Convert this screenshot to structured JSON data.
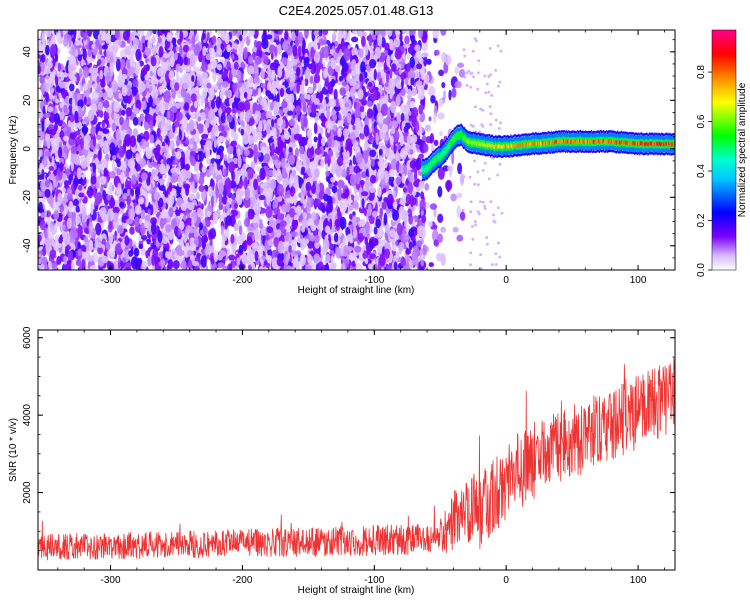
{
  "title": "C2E4.2025.057.01.48.G13",
  "chart_data": [
    {
      "type": "heatmap",
      "xlabel": "Height of straight line (km)",
      "ylabel": "Frequency (Hz)",
      "xlim": [
        -355,
        128
      ],
      "ylim": [
        -50,
        49
      ],
      "xticks": [
        -300,
        -200,
        -100,
        0,
        100
      ],
      "yticks": [
        -40,
        -20,
        0,
        20,
        40
      ],
      "colorbar": {
        "label": "Normalized spectral amplitude",
        "range": [
          0,
          0.97
        ],
        "ticks": [
          "0.0",
          "0.2",
          "0.4",
          "0.6",
          "0.8"
        ],
        "colors": [
          "#ffffff",
          "#7b00ff",
          "#0000ff",
          "#00ffff",
          "#00ff00",
          "#ffff00",
          "#ff0000",
          "#ff00aa"
        ]
      },
      "noise_region": {
        "x_range": [
          -355,
          -33
        ],
        "freq_range": [
          -50,
          49
        ],
        "amplitude_range": [
          0.0,
          0.2
        ]
      },
      "signal_track": {
        "x": [
          -64,
          -60,
          -55,
          -50,
          -45,
          -40,
          -35,
          -30,
          -20,
          -10,
          0,
          20,
          40,
          60,
          80,
          100,
          128
        ],
        "freq": [
          -9,
          -8,
          -5,
          -3,
          0,
          4,
          6,
          3,
          2,
          1,
          1,
          2,
          3,
          3,
          3,
          2,
          2
        ],
        "amplitude": [
          0.45,
          0.5,
          0.55,
          0.5,
          0.5,
          0.6,
          0.55,
          0.65,
          0.7,
          0.75,
          0.8,
          0.82,
          0.85,
          0.85,
          0.88,
          0.9,
          0.9
        ]
      },
      "grid": false
    },
    {
      "type": "line",
      "xlabel": "Height of straight line (km)",
      "ylabel": "SNR (10 * v/v)",
      "xlim": [
        -355,
        128
      ],
      "ylim": [
        0,
        6200
      ],
      "xticks": [
        -300,
        -200,
        -100,
        0,
        100
      ],
      "yticks": [
        2000,
        4000,
        6000
      ],
      "color": "#ee3333",
      "series": [
        {
          "x": [
            -355,
            -300,
            -250,
            -200,
            -150,
            -100,
            -60,
            -45,
            -40,
            -30,
            -20,
            -10,
            0,
            20,
            40,
            60,
            80,
            100,
            128
          ],
          "mean": [
            600,
            620,
            650,
            700,
            720,
            760,
            800,
            850,
            1300,
            1600,
            1500,
            1900,
            2300,
            2800,
            3200,
            3500,
            3800,
            4100,
            4500
          ],
          "spread": [
            350,
            350,
            350,
            380,
            380,
            400,
            400,
            420,
            800,
            900,
            1000,
            1000,
            1000,
            1000,
            1000,
            1000,
            1000,
            1000,
            900
          ]
        }
      ],
      "grid": false
    }
  ]
}
